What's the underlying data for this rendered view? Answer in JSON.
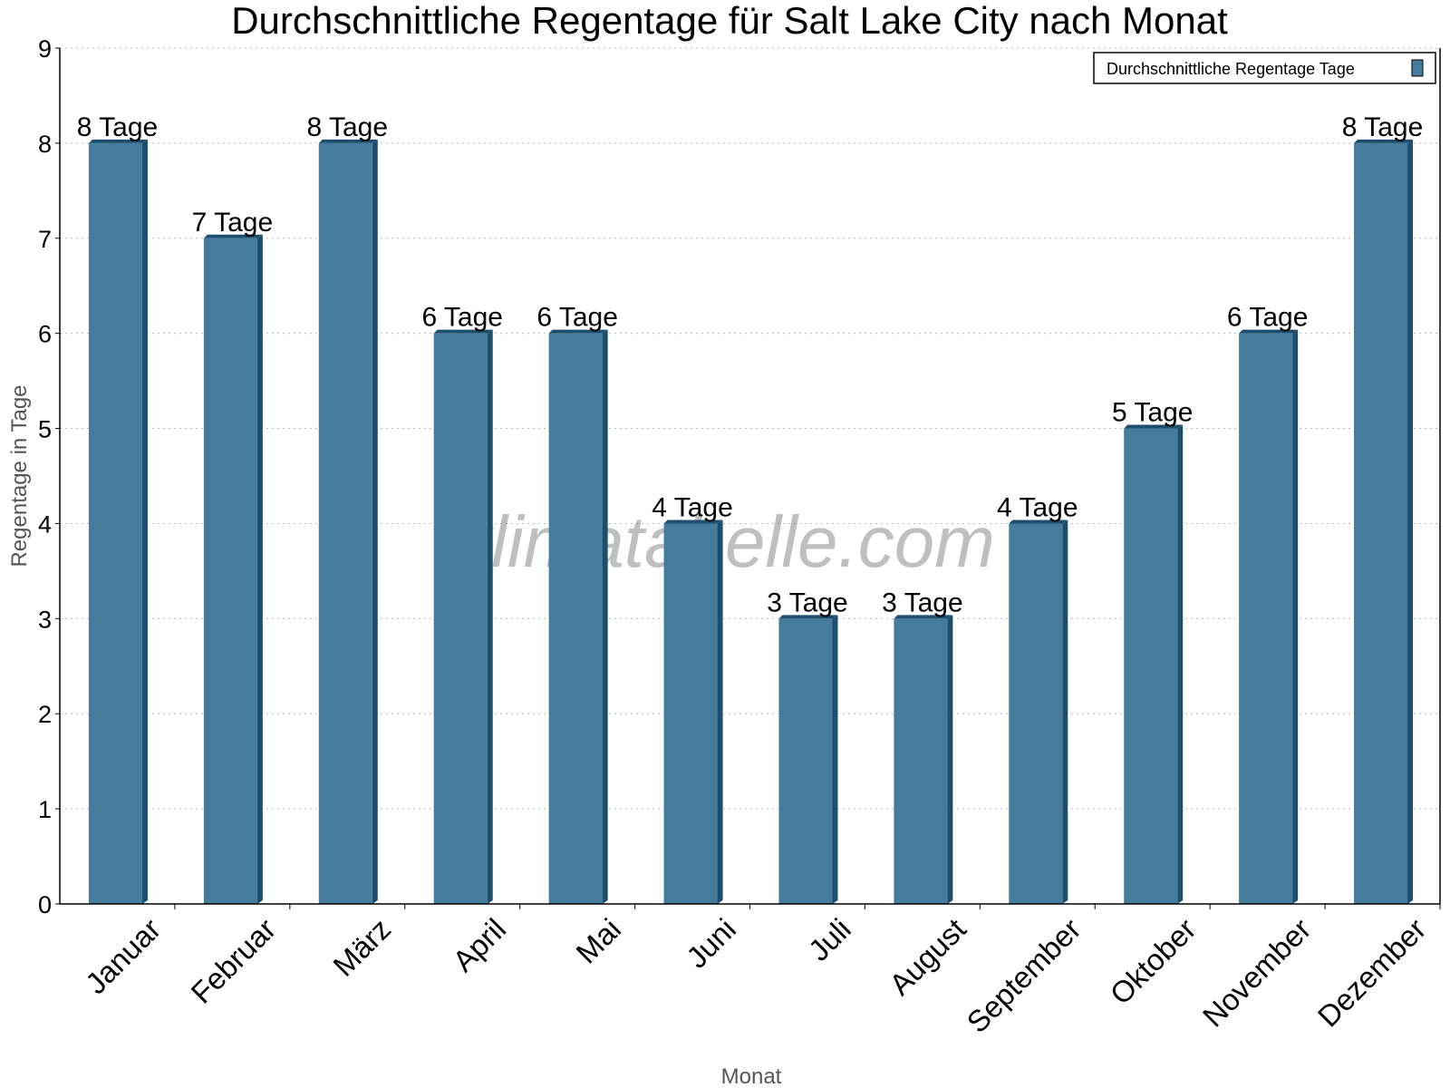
{
  "chart_data": {
    "type": "bar",
    "title": "Durchschnittliche Regentage für Salt Lake City nach Monat",
    "xlabel": "Monat",
    "ylabel": "Regentage in Tage",
    "categories": [
      "Januar",
      "Februar",
      "März",
      "April",
      "Mai",
      "Juni",
      "Juli",
      "August",
      "September",
      "Oktober",
      "November",
      "Dezember"
    ],
    "series": [
      {
        "name": "Durchschnittliche Regentage Tage",
        "values": [
          8,
          7,
          8,
          6,
          6,
          4,
          3,
          3,
          4,
          5,
          6,
          8
        ],
        "color": "#457b9d",
        "side_color": "#1d4e6e"
      }
    ],
    "data_labels": [
      "8 Tage",
      "7 Tage",
      "8 Tage",
      "6 Tage",
      "6 Tage",
      "4 Tage",
      "3 Tage",
      "3 Tage",
      "4 Tage",
      "5 Tage",
      "6 Tage",
      "8 Tage"
    ],
    "ylim": [
      0,
      9
    ],
    "yticks": [
      "0",
      "1",
      "2",
      "3",
      "4",
      "5",
      "6",
      "7",
      "8",
      "9"
    ],
    "grid": true,
    "legend_position": "top-right",
    "watermark": "klimatabelle.com"
  }
}
